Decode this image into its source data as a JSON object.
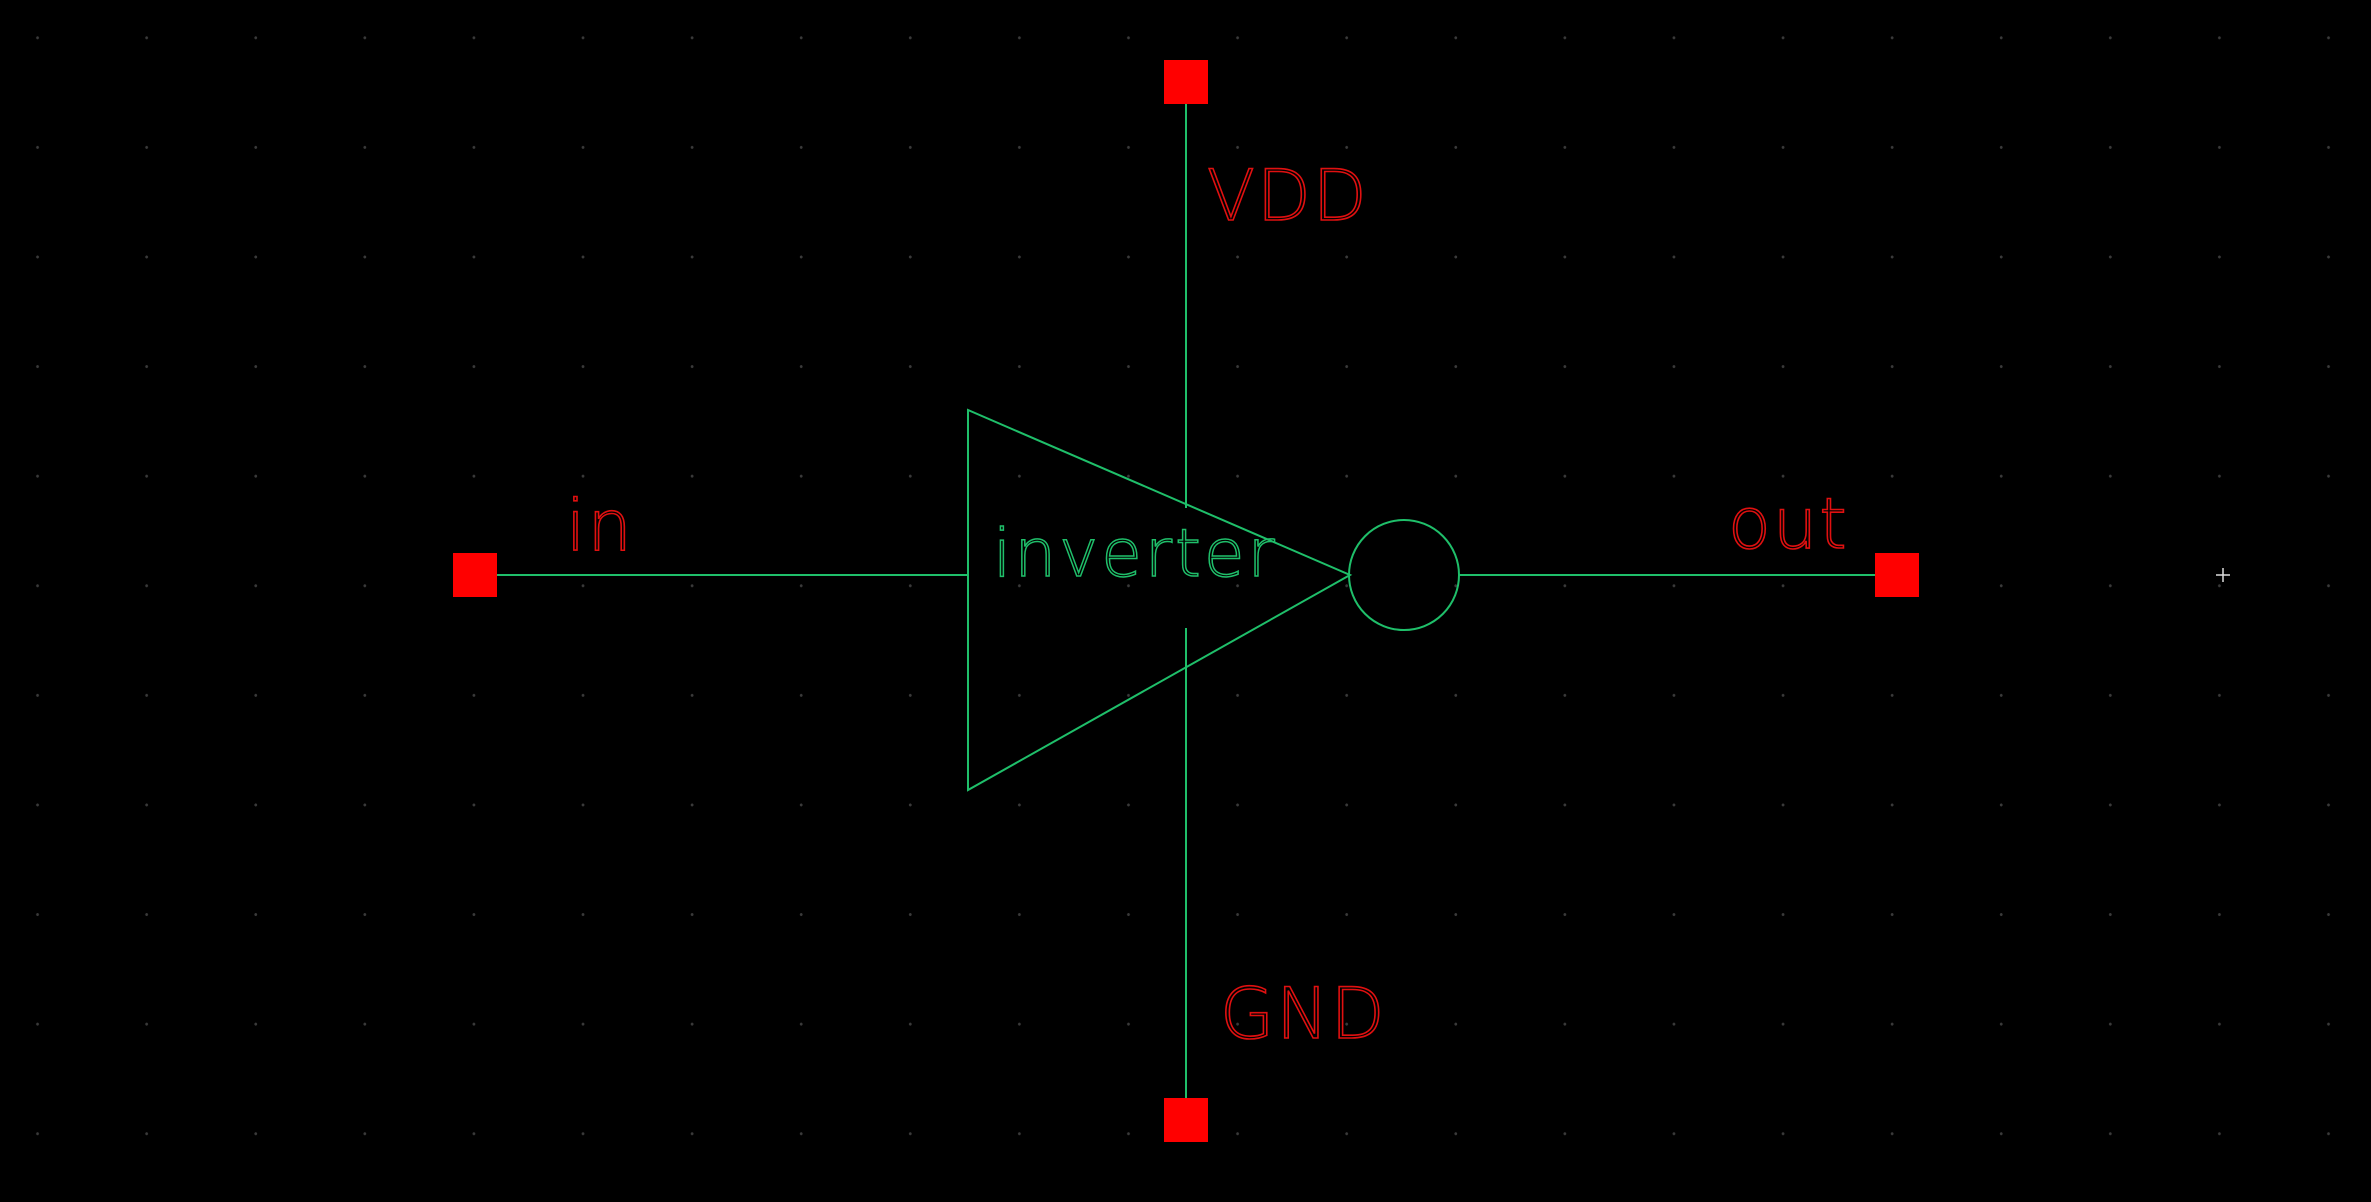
{
  "schematic": {
    "cell_name": "inverter",
    "pins": {
      "input": "in",
      "output": "out",
      "power": "VDD",
      "ground": "GND"
    }
  },
  "colors": {
    "background": "#000000",
    "grid_dot": "#3a3a3a",
    "wire": "#1fbf6a",
    "pin": "#ff0000",
    "pin_label": "#e01010",
    "cursor": "#dddddd"
  },
  "icons": {
    "cursor": "crosshair-cursor-icon"
  }
}
